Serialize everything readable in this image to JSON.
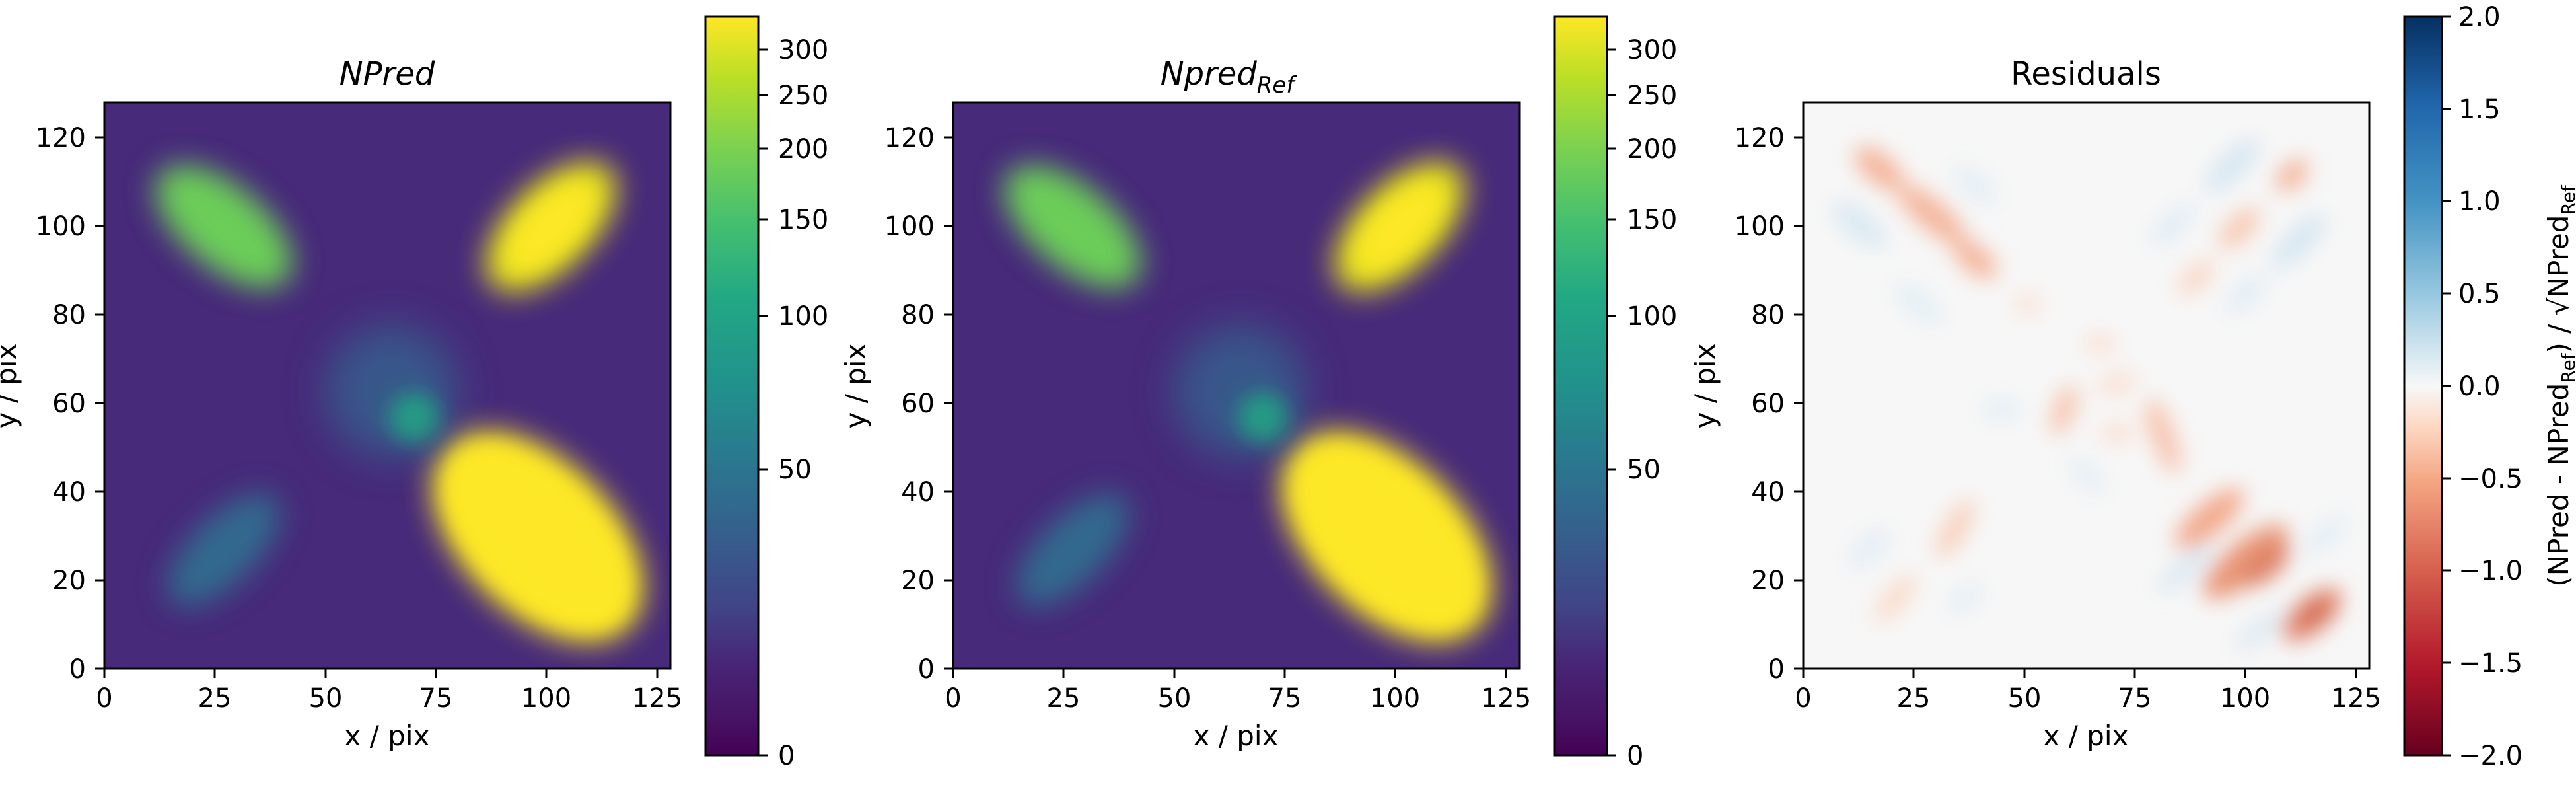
{
  "chart_data": [
    {
      "type": "heatmap",
      "title": "NPred",
      "xlabel": "x / pix",
      "ylabel": "y / pix",
      "xlim": [
        0,
        128
      ],
      "ylim": [
        0,
        128
      ],
      "xticks": [
        "0",
        "25",
        "50",
        "75",
        "100",
        "125"
      ],
      "yticks": [
        "0",
        "20",
        "40",
        "60",
        "80",
        "100",
        "120"
      ],
      "colormap": "viridis",
      "colorbar": {
        "range": [
          0,
          320
        ],
        "scale": "sqrt",
        "ticks": [
          "0",
          "50",
          "100",
          "150",
          "200",
          "250",
          "300"
        ]
      },
      "sources": [
        {
          "x": 27,
          "y": 100,
          "peak": 150,
          "shape": "elongated"
        },
        {
          "x": 101,
          "y": 100,
          "peak": 290,
          "shape": "elongated"
        },
        {
          "x": 27,
          "y": 27,
          "peak": 30,
          "shape": "elongated"
        },
        {
          "x": 98,
          "y": 30,
          "peak": 320,
          "shape": "elongated"
        },
        {
          "x": 65,
          "y": 63,
          "peak": 28,
          "shape": "disk"
        },
        {
          "x": 70,
          "y": 57,
          "peak": 60,
          "shape": "point"
        }
      ]
    },
    {
      "type": "heatmap",
      "title": "Npred",
      "title_subscript": "Ref",
      "xlabel": "x / pix",
      "ylabel": "y / pix",
      "xlim": [
        0,
        128
      ],
      "ylim": [
        0,
        128
      ],
      "xticks": [
        "0",
        "25",
        "50",
        "75",
        "100",
        "125"
      ],
      "yticks": [
        "0",
        "20",
        "40",
        "60",
        "80",
        "100",
        "120"
      ],
      "colormap": "viridis",
      "colorbar": {
        "range": [
          0,
          320
        ],
        "scale": "sqrt",
        "ticks": [
          "0",
          "50",
          "100",
          "150",
          "200",
          "250",
          "300"
        ]
      },
      "sources": [
        {
          "x": 27,
          "y": 100,
          "peak": 150,
          "shape": "elongated"
        },
        {
          "x": 101,
          "y": 100,
          "peak": 290,
          "shape": "elongated"
        },
        {
          "x": 27,
          "y": 27,
          "peak": 30,
          "shape": "elongated"
        },
        {
          "x": 98,
          "y": 30,
          "peak": 320,
          "shape": "elongated"
        },
        {
          "x": 65,
          "y": 63,
          "peak": 28,
          "shape": "disk"
        },
        {
          "x": 70,
          "y": 57,
          "peak": 60,
          "shape": "point"
        }
      ]
    },
    {
      "type": "heatmap",
      "title": "Residuals",
      "xlabel": "x / pix",
      "ylabel": "y / pix",
      "xlim": [
        0,
        128
      ],
      "ylim": [
        0,
        128
      ],
      "xticks": [
        "0",
        "25",
        "50",
        "75",
        "100",
        "125"
      ],
      "yticks": [
        "0",
        "20",
        "40",
        "60",
        "80",
        "100",
        "120"
      ],
      "colormap": "RdBu",
      "colorbar": {
        "range": [
          -2.0,
          2.0
        ],
        "ticks": [
          "2.0",
          "1.5",
          "1.0",
          "0.5",
          "0.0",
          "−0.5",
          "−1.0",
          "−1.5",
          "−2.0"
        ],
        "label_parts": {
          "a": "(NPred - NPred",
          "b": "Ref",
          "c": ") / √NPred",
          "d": "Ref"
        }
      },
      "features": [
        {
          "x": 25,
          "y": 102,
          "value": -0.45
        },
        {
          "x": 100,
          "y": 100,
          "value": -0.35
        },
        {
          "x": 100,
          "y": 28,
          "value": -0.85
        },
        {
          "x": 115,
          "y": 17,
          "value": -1.1
        },
        {
          "x": 25,
          "y": 28,
          "value": -0.3
        },
        {
          "x": 75,
          "y": 55,
          "value": -0.3
        },
        {
          "x": 110,
          "y": 95,
          "value": 0.2
        },
        {
          "x": 30,
          "y": 90,
          "value": 0.15
        }
      ]
    }
  ]
}
